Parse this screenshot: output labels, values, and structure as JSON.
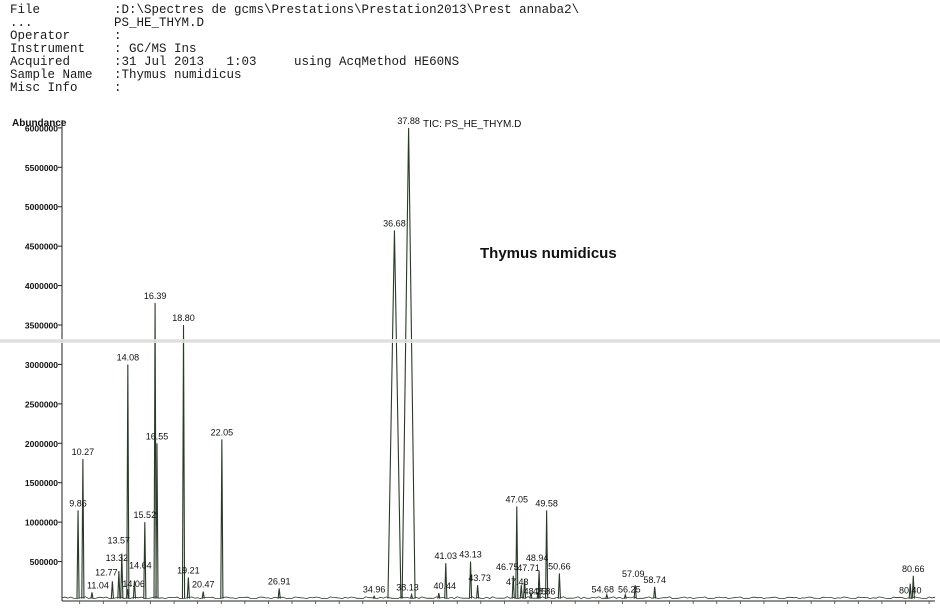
{
  "header": {
    "rows": [
      {
        "key": "File",
        "sep": ":",
        "value": "D:\\Spectres de gcms\\Prestations\\Prestation2013\\Prest annaba2\\"
      },
      {
        "key": "...",
        "sep": "",
        "value": "PS_HE_THYM.D"
      },
      {
        "key": "Operator",
        "sep": ":",
        "value": ""
      },
      {
        "key": "Instrument",
        "sep": ":",
        "value": " GC/MS Ins"
      },
      {
        "key": "Acquired",
        "sep": ":",
        "value": "31 Jul 2013   1:03     using AcqMethod HE60NS"
      },
      {
        "key": "Sample Name",
        "sep": ":",
        "value": "Thymus numidicus"
      },
      {
        "key": "Misc Info",
        "sep": ":",
        "value": ""
      }
    ]
  },
  "chart_data": {
    "type": "line",
    "title": "TIC: PS_HE_THYM.D",
    "annotation": "Thymus numidicus",
    "ylabel": "Abundance",
    "ylim": [
      0,
      6100000
    ],
    "xlim": [
      8.5,
      82.5
    ],
    "yticks": [
      500000,
      1000000,
      1500000,
      2000000,
      2500000,
      3000000,
      3500000,
      4000000,
      4500000,
      5000000,
      5500000,
      6000000
    ],
    "ytick_labels": [
      "500000",
      "1000000",
      "1500000",
      "2000000",
      "2500000",
      "3000000",
      "3500000",
      "4000000",
      "4500000",
      "5000000",
      "5500000",
      "6000000"
    ],
    "line_color": "#2a3a2a",
    "peaks": [
      {
        "rt": 9.86,
        "label": "9.86",
        "abundance": 1150000
      },
      {
        "rt": 10.27,
        "label": "10.27",
        "abundance": 1800000
      },
      {
        "rt": 11.04,
        "label": "11.04",
        "abundance": 110000
      },
      {
        "rt": 12.77,
        "label": "12.77",
        "abundance": 250000
      },
      {
        "rt": 13.32,
        "label": "13.32",
        "abundance": 380000
      },
      {
        "rt": 13.57,
        "label": "13.57",
        "abundance": 600000
      },
      {
        "rt": 14.06,
        "label": "14.06",
        "abundance": 150000
      },
      {
        "rt": 14.08,
        "label": "14.08",
        "abundance": 3000000
      },
      {
        "rt": 14.64,
        "label": "14.64",
        "abundance": 260000
      },
      {
        "rt": 15.52,
        "label": "15.52",
        "abundance": 1000000
      },
      {
        "rt": 16.39,
        "label": "16.39",
        "abundance": 3780000
      },
      {
        "rt": 16.55,
        "label": "16.55",
        "abundance": 2000000
      },
      {
        "rt": 18.8,
        "label": "18.80",
        "abundance": 3500000
      },
      {
        "rt": 19.21,
        "label": "19.21",
        "abundance": 300000
      },
      {
        "rt": 20.47,
        "label": "20.47",
        "abundance": 120000
      },
      {
        "rt": 22.05,
        "label": "22.05",
        "abundance": 2050000
      },
      {
        "rt": 26.91,
        "label": "26.91",
        "abundance": 160000
      },
      {
        "rt": 34.96,
        "label": "34.96",
        "abundance": 60000
      },
      {
        "rt": 36.68,
        "label": "36.68",
        "abundance": 4700000
      },
      {
        "rt": 37.88,
        "label": "37.88",
        "abundance": 6000000
      },
      {
        "rt": 38.13,
        "label": "38.13",
        "abundance": 80000
      },
      {
        "rt": 40.44,
        "label": "40.44",
        "abundance": 100000
      },
      {
        "rt": 41.03,
        "label": "41.03",
        "abundance": 480000
      },
      {
        "rt": 43.13,
        "label": "43.13",
        "abundance": 500000
      },
      {
        "rt": 43.73,
        "label": "43.73",
        "abundance": 200000
      },
      {
        "rt": 46.75,
        "label": "46.75",
        "abundance": 320000
      },
      {
        "rt": 47.05,
        "label": "47.05",
        "abundance": 1200000
      },
      {
        "rt": 47.43,
        "label": "47.43",
        "abundance": 200000
      },
      {
        "rt": 47.71,
        "label": "47.71",
        "abundance": 280000
      },
      {
        "rt": 48.25,
        "label": "48.25",
        "abundance": 110000
      },
      {
        "rt": 48.86,
        "label": "48.86",
        "abundance": 110000
      },
      {
        "rt": 48.94,
        "label": "48.94",
        "abundance": 380000
      },
      {
        "rt": 49.58,
        "label": "49.58",
        "abundance": 1150000
      },
      {
        "rt": 50.66,
        "label": "50.66",
        "abundance": 350000
      },
      {
        "rt": 54.68,
        "label": "54.68",
        "abundance": 80000
      },
      {
        "rt": 56.25,
        "label": "56.25",
        "abundance": 80000
      },
      {
        "rt": 57.09,
        "label": "57.09",
        "abundance": 200000
      },
      {
        "rt": 58.74,
        "label": "58.74",
        "abundance": 180000
      },
      {
        "rt": 80.4,
        "label": "80.40",
        "abundance": 220000
      },
      {
        "rt": 80.66,
        "label": "80.66",
        "abundance": 320000
      }
    ]
  }
}
